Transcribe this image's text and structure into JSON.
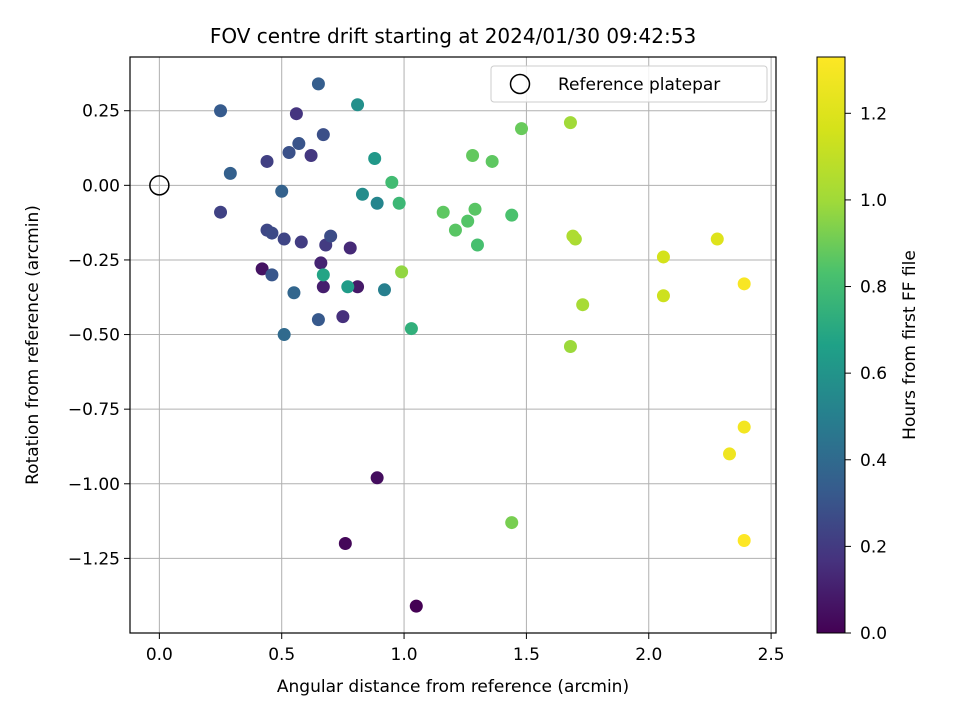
{
  "chart_data": {
    "type": "scatter",
    "title": "FOV centre drift starting at 2024/01/30 09:42:53",
    "xlabel": "Angular distance from reference (arcmin)",
    "ylabel": "Rotation from reference (arcmin)",
    "xlim": [
      -0.12,
      2.52
    ],
    "ylim": [
      -1.5,
      0.43
    ],
    "xticks": [
      0.0,
      0.5,
      1.0,
      1.5,
      2.0,
      2.5
    ],
    "xtick_labels": [
      "0.0",
      "0.5",
      "1.0",
      "1.5",
      "2.0",
      "2.5"
    ],
    "yticks": [
      0.25,
      0.0,
      -0.25,
      -0.5,
      -0.75,
      -1.0,
      -1.25
    ],
    "ytick_labels": [
      "0.25",
      "0.00",
      "−0.25",
      "−0.50",
      "−0.75",
      "−1.00",
      "−1.25"
    ],
    "grid": true,
    "legend": {
      "position": "top-right",
      "entries": [
        "Reference platepar"
      ]
    },
    "reference_point": {
      "x": 0.0,
      "y": 0.0
    },
    "colorbar": {
      "label": "Hours from first FF file",
      "colormap": "viridis",
      "range": [
        0.0,
        1.33
      ],
      "ticks": [
        0.0,
        0.2,
        0.4,
        0.6,
        0.8,
        1.0,
        1.2
      ],
      "tick_labels": [
        "0.0",
        "0.2",
        "0.4",
        "0.6",
        "0.8",
        "1.0",
        "1.2"
      ]
    },
    "points": [
      {
        "x": 1.05,
        "y": -1.41,
        "c": 0.0
      },
      {
        "x": 0.76,
        "y": -1.2,
        "c": 0.02
      },
      {
        "x": 0.89,
        "y": -0.98,
        "c": 0.04
      },
      {
        "x": 0.42,
        "y": -0.28,
        "c": 0.06
      },
      {
        "x": 0.81,
        "y": -0.34,
        "c": 0.08
      },
      {
        "x": 0.67,
        "y": -0.34,
        "c": 0.1
      },
      {
        "x": 0.66,
        "y": -0.26,
        "c": 0.12
      },
      {
        "x": 0.78,
        "y": -0.21,
        "c": 0.14
      },
      {
        "x": 0.75,
        "y": -0.44,
        "c": 0.16
      },
      {
        "x": 0.56,
        "y": 0.24,
        "c": 0.18
      },
      {
        "x": 0.62,
        "y": 0.1,
        "c": 0.19
      },
      {
        "x": 0.68,
        "y": -0.2,
        "c": 0.2
      },
      {
        "x": 0.58,
        "y": -0.19,
        "c": 0.21
      },
      {
        "x": 0.44,
        "y": 0.08,
        "c": 0.22
      },
      {
        "x": 0.25,
        "y": -0.09,
        "c": 0.23
      },
      {
        "x": 0.51,
        "y": -0.18,
        "c": 0.24
      },
      {
        "x": 0.44,
        "y": -0.15,
        "c": 0.25
      },
      {
        "x": 0.46,
        "y": -0.16,
        "c": 0.26
      },
      {
        "x": 0.7,
        "y": -0.17,
        "c": 0.27
      },
      {
        "x": 0.67,
        "y": 0.17,
        "c": 0.28
      },
      {
        "x": 0.53,
        "y": 0.11,
        "c": 0.29
      },
      {
        "x": 0.57,
        "y": 0.14,
        "c": 0.3
      },
      {
        "x": 0.46,
        "y": -0.3,
        "c": 0.31
      },
      {
        "x": 0.65,
        "y": -0.45,
        "c": 0.32
      },
      {
        "x": 0.25,
        "y": 0.25,
        "c": 0.33
      },
      {
        "x": 0.65,
        "y": 0.34,
        "c": 0.34
      },
      {
        "x": 0.29,
        "y": 0.04,
        "c": 0.35
      },
      {
        "x": 0.5,
        "y": -0.02,
        "c": 0.36
      },
      {
        "x": 0.55,
        "y": -0.36,
        "c": 0.38
      },
      {
        "x": 0.51,
        "y": -0.5,
        "c": 0.4
      },
      {
        "x": 0.92,
        "y": -0.35,
        "c": 0.5
      },
      {
        "x": 0.89,
        "y": -0.06,
        "c": 0.53
      },
      {
        "x": 0.83,
        "y": -0.03,
        "c": 0.56
      },
      {
        "x": 0.81,
        "y": 0.27,
        "c": 0.58
      },
      {
        "x": 0.88,
        "y": 0.09,
        "c": 0.62
      },
      {
        "x": 0.77,
        "y": -0.34,
        "c": 0.64
      },
      {
        "x": 0.67,
        "y": -0.3,
        "c": 0.68
      },
      {
        "x": 1.03,
        "y": -0.48,
        "c": 0.74
      },
      {
        "x": 0.98,
        "y": -0.06,
        "c": 0.78
      },
      {
        "x": 0.95,
        "y": 0.01,
        "c": 0.8
      },
      {
        "x": 1.3,
        "y": -0.2,
        "c": 0.82
      },
      {
        "x": 1.44,
        "y": -0.1,
        "c": 0.83
      },
      {
        "x": 1.26,
        "y": -0.12,
        "c": 0.85
      },
      {
        "x": 1.21,
        "y": -0.15,
        "c": 0.86
      },
      {
        "x": 1.29,
        "y": -0.08,
        "c": 0.86
      },
      {
        "x": 1.16,
        "y": -0.09,
        "c": 0.87
      },
      {
        "x": 1.36,
        "y": 0.08,
        "c": 0.87
      },
      {
        "x": 1.28,
        "y": 0.1,
        "c": 0.88
      },
      {
        "x": 1.48,
        "y": 0.19,
        "c": 0.89
      },
      {
        "x": 1.44,
        "y": -1.13,
        "c": 0.92
      },
      {
        "x": 0.99,
        "y": -0.29,
        "c": 0.97
      },
      {
        "x": 1.68,
        "y": -0.54,
        "c": 0.99
      },
      {
        "x": 1.68,
        "y": 0.21,
        "c": 1.0
      },
      {
        "x": 1.73,
        "y": -0.4,
        "c": 1.02
      },
      {
        "x": 1.7,
        "y": -0.18,
        "c": 1.03
      },
      {
        "x": 1.69,
        "y": -0.17,
        "c": 1.04
      },
      {
        "x": 2.06,
        "y": -0.37,
        "c": 1.14
      },
      {
        "x": 2.06,
        "y": -0.24,
        "c": 1.16
      },
      {
        "x": 2.28,
        "y": -0.18,
        "c": 1.2
      },
      {
        "x": 2.33,
        "y": -0.9,
        "c": 1.27
      },
      {
        "x": 2.39,
        "y": -0.81,
        "c": 1.29
      },
      {
        "x": 2.39,
        "y": -0.33,
        "c": 1.31
      },
      {
        "x": 2.39,
        "y": -1.19,
        "c": 1.33
      }
    ]
  }
}
